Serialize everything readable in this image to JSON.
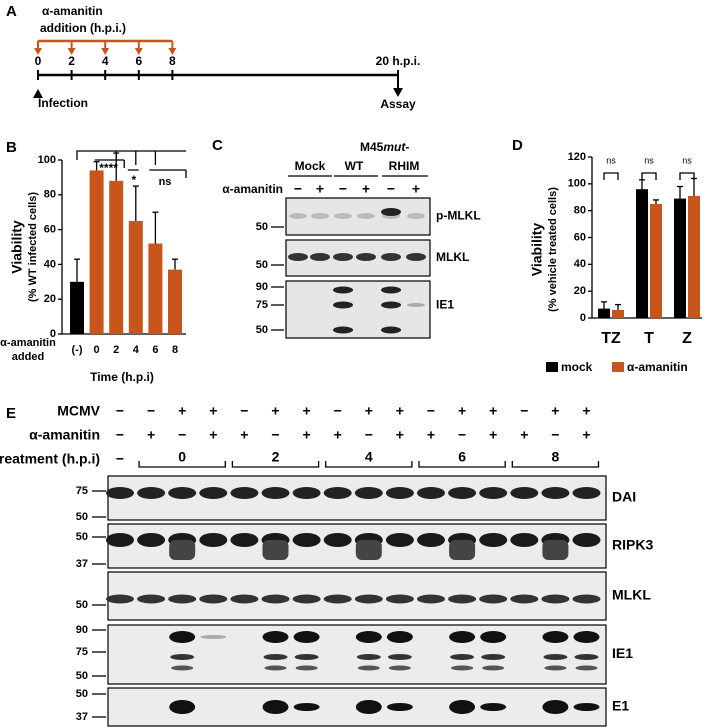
{
  "panel_labels": [
    "A",
    "B",
    "C",
    "D",
    "E"
  ],
  "timeline": {
    "title_lines": [
      "α-amanitin",
      "addition (h.p.i.)"
    ],
    "ticks": [
      0,
      2,
      4,
      6,
      8
    ],
    "end_label": "20 h.p.i.",
    "start_event": "Infection",
    "end_event": "Assay"
  },
  "chart_data": [
    {
      "type": "bar",
      "y_label": "Viability",
      "y_label_note": "(% WT infected cells)",
      "x_label": "Time (h.p.i)",
      "category_title_lines": [
        "α-amanitin",
        "added"
      ],
      "categories": [
        "(-)",
        "0",
        "2",
        "4",
        "6",
        "8"
      ],
      "values": [
        30,
        94,
        88,
        65,
        52,
        37
      ],
      "errors": [
        13,
        5,
        16,
        20,
        18,
        6
      ],
      "colors": [
        "#000000",
        "#c8561c",
        "#c8561c",
        "#c8561c",
        "#c8561c",
        "#c8561c"
      ],
      "ylim": [
        0,
        100
      ],
      "yticks": [
        0,
        20,
        40,
        60,
        80,
        100
      ],
      "annotations": [
        "****",
        "*",
        "ns"
      ]
    },
    {
      "type": "grouped-bar",
      "y_label": "Viability",
      "y_label_note": "(% vehicle treated cells)",
      "categories": [
        "TZ",
        "T",
        "Z"
      ],
      "series": [
        {
          "name": "mock",
          "color": "#000000",
          "values": [
            7,
            96,
            89
          ],
          "errors": [
            5,
            7,
            9
          ]
        },
        {
          "name": "α-amanitin",
          "color": "#c8561c",
          "values": [
            6,
            85,
            91
          ],
          "errors": [
            4,
            3,
            13
          ]
        }
      ],
      "ylim": [
        0,
        120
      ],
      "yticks": [
        0,
        20,
        40,
        60,
        80,
        100,
        120
      ],
      "annotations": [
        "ns",
        "ns",
        "ns"
      ]
    }
  ],
  "blot_c": {
    "groups": [
      "Mock",
      "WT",
      "M45"
    ],
    "group_suffix_italic": "mut",
    "group_suffix": "-",
    "group_second_line": "RHIM",
    "row_label": "α-amanitin",
    "signs": [
      "−",
      "+",
      "−",
      "+",
      "−",
      "+"
    ],
    "strips": [
      {
        "label": "p-MLKL",
        "markers": [
          50
        ]
      },
      {
        "label": "MLKL",
        "markers": [
          50
        ]
      },
      {
        "label": "IE1",
        "markers": [
          90,
          75,
          50
        ]
      }
    ]
  },
  "blot_e": {
    "rows": [
      {
        "label": "MCMV",
        "signs": [
          "−",
          "−",
          "+",
          "+",
          "−",
          "+",
          "+",
          "−",
          "+",
          "+",
          "−",
          "+",
          "+",
          "−",
          "+",
          "+"
        ]
      },
      {
        "label": "α-amanitin",
        "signs": [
          "−",
          "+",
          "−",
          "+",
          "+",
          "−",
          "+",
          "+",
          "−",
          "+",
          "+",
          "−",
          "+",
          "+",
          "−",
          "+"
        ]
      }
    ],
    "treatment_label": "treatment (h.p.i)",
    "treatment_none": "−",
    "treatment_groups": [
      "0",
      "2",
      "4",
      "6",
      "8"
    ],
    "strips": [
      {
        "label": "DAI",
        "markers": [
          75,
          50
        ]
      },
      {
        "label": "RIPK3",
        "markers": [
          50,
          37
        ]
      },
      {
        "label": "MLKL",
        "markers": [
          50
        ]
      },
      {
        "label": "IE1",
        "markers": [
          90,
          75,
          50
        ]
      },
      {
        "label": "E1",
        "markers": [
          50,
          37
        ]
      }
    ]
  }
}
